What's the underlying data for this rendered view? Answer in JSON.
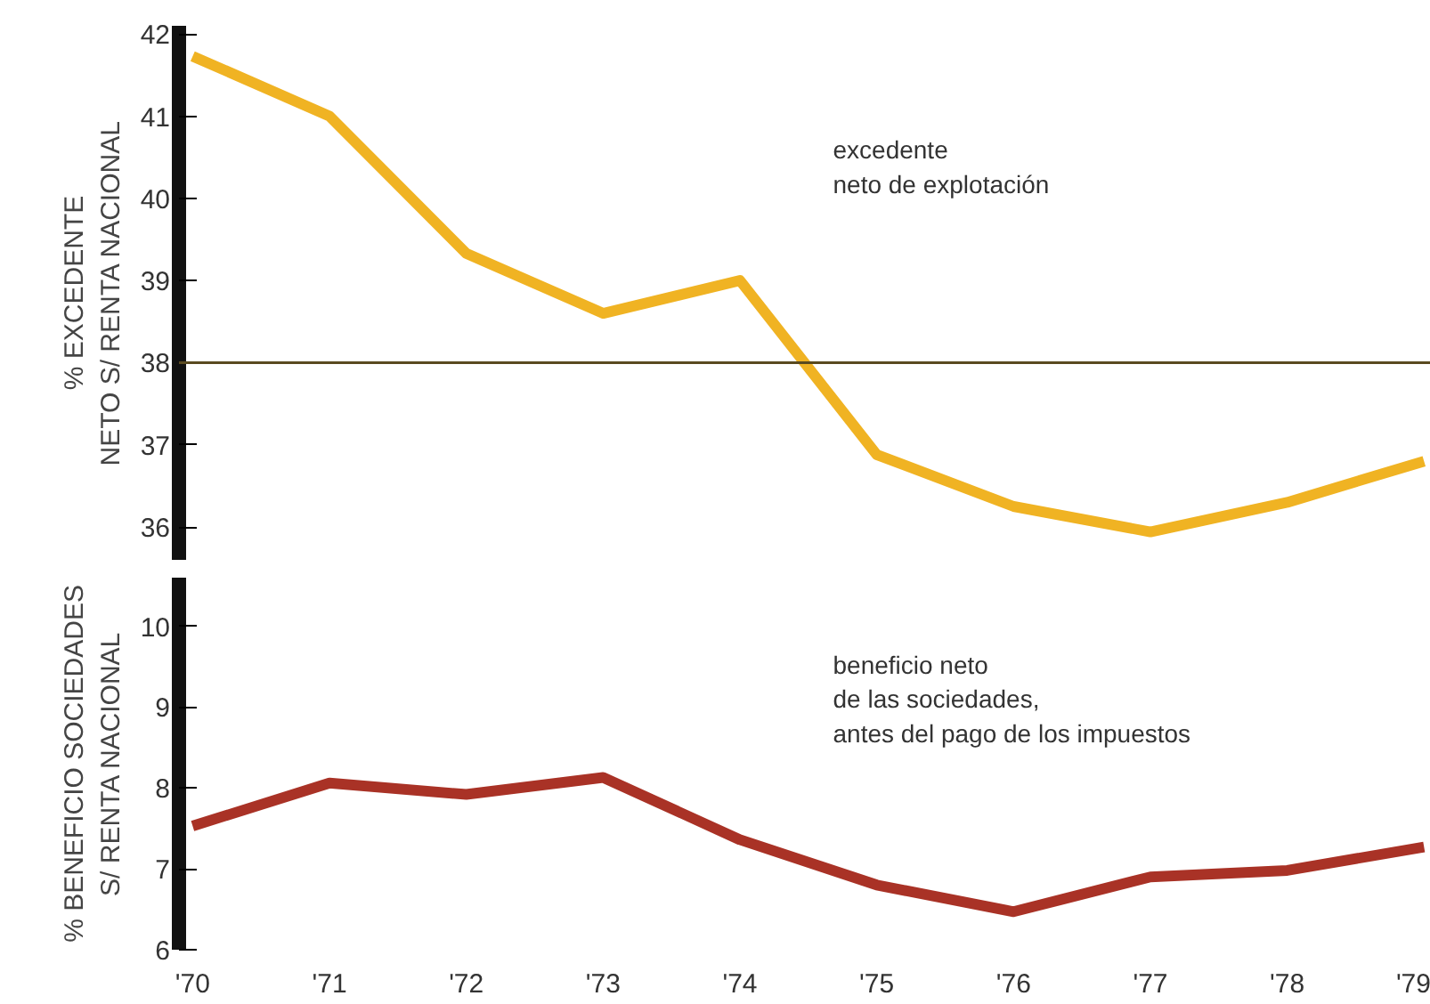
{
  "chart_data": [
    {
      "type": "line",
      "ylabel": "% EXCEDENTE\nNETO S/ RENTA NACIONAL",
      "categories": [
        null,
        null,
        null,
        null,
        null,
        null,
        null,
        null,
        null,
        null
      ],
      "ylim": [
        35.6,
        42.1
      ],
      "yticks": [
        36,
        37,
        38,
        39,
        40,
        41,
        42
      ],
      "grid": false,
      "series": [
        {
          "name": "excedente\nneto de explotación",
          "color": "#f0b323",
          "values": [
            41.73,
            41.0,
            39.33,
            38.6,
            39.0,
            36.88,
            36.25,
            35.94,
            36.3,
            36.8
          ]
        }
      ],
      "ref_lines": [
        {
          "axis": "y",
          "value": 38,
          "color": "#5a4a20"
        }
      ]
    },
    {
      "type": "line",
      "ylabel": "% BENEFICIO SOCIEDADES\nS/ RENTA NACIONAL",
      "categories": [
        "'70",
        "'71",
        "'72",
        "'73",
        "'74",
        "'75",
        "'76",
        "'77",
        "'78",
        "'79"
      ],
      "ylim": [
        6,
        10.6
      ],
      "yticks": [
        6,
        7,
        8,
        9,
        10
      ],
      "grid": false,
      "series": [
        {
          "name": "beneficio neto\nde las sociedades,\nantes del pago de los impuestos",
          "color": "#a93226",
          "values": [
            7.53,
            8.06,
            7.92,
            8.13,
            7.36,
            6.8,
            6.47,
            6.9,
            6.98,
            7.27
          ]
        }
      ]
    }
  ]
}
